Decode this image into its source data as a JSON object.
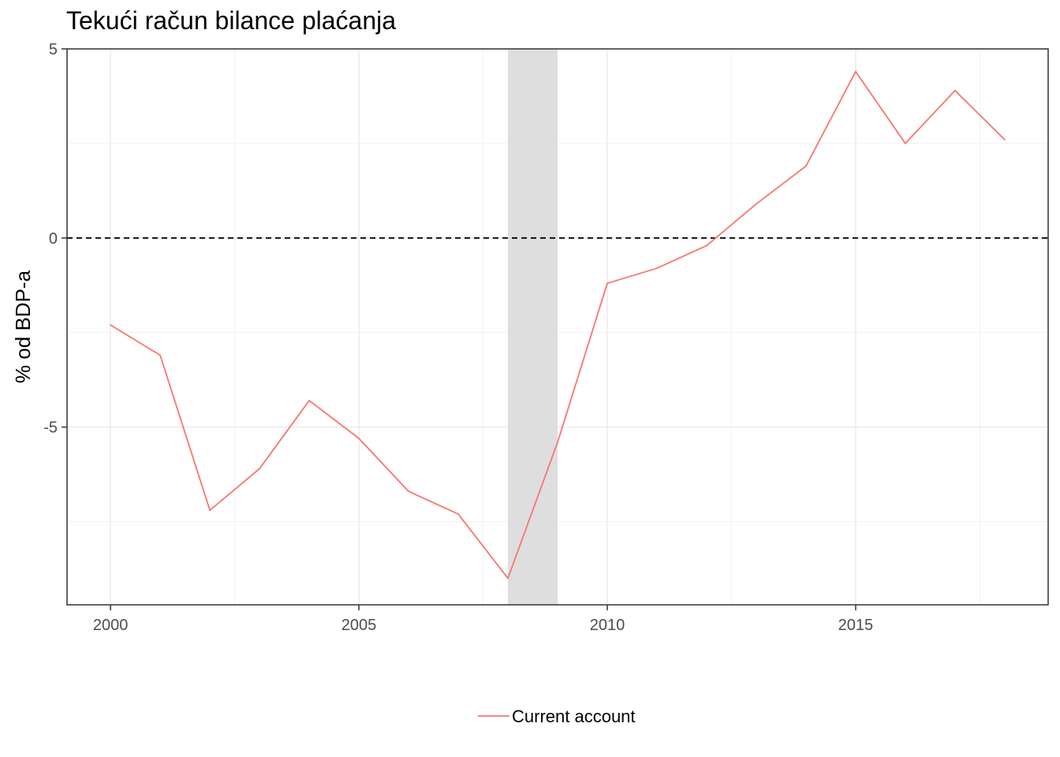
{
  "chart_data": {
    "type": "line",
    "title": "Tekući račun bilance plaćanja",
    "xlabel": "",
    "ylabel": "% od BDP-a",
    "xlim": [
      1999.125,
      2018.875
    ],
    "ylim": [
      -9.7,
      5.0
    ],
    "x_ticks": [
      2000,
      2005,
      2010,
      2015
    ],
    "x_tick_labels": [
      "2000",
      "2005",
      "2010",
      "2015"
    ],
    "y_ticks": [
      -5,
      0,
      5
    ],
    "y_tick_labels": [
      "-5",
      "0",
      "5"
    ],
    "grid": true,
    "reference_line": {
      "y": 0,
      "style": "dashed",
      "color": "#000000"
    },
    "shaded_region": {
      "x0": 2008,
      "x1": 2009,
      "color": "#dedede"
    },
    "series": [
      {
        "name": "Current account",
        "color": "#f8766d",
        "x": [
          2000,
          2001,
          2002,
          2003,
          2004,
          2005,
          2006,
          2007,
          2008,
          2009,
          2010,
          2011,
          2012,
          2013,
          2014,
          2015,
          2016,
          2017,
          2018
        ],
        "y": [
          -2.3,
          -3.1,
          -7.2,
          -6.1,
          -4.3,
          -5.3,
          -6.7,
          -7.3,
          -9.0,
          -5.4,
          -1.2,
          -0.8,
          -0.2,
          0.9,
          1.9,
          4.4,
          2.5,
          3.9,
          2.6
        ]
      }
    ],
    "legend": {
      "position": "bottom",
      "entries": [
        "Current account"
      ]
    }
  }
}
